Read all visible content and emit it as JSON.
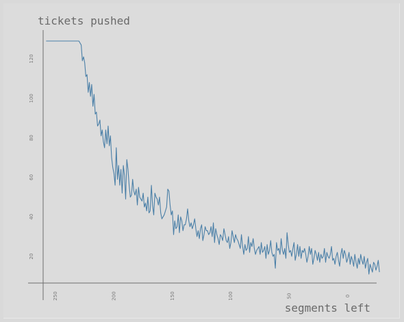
{
  "chart_data": {
    "type": "line",
    "title": "",
    "ylabel": "tickets pushed",
    "xlabel": "segments left",
    "x_reversed": true,
    "xlim": [
      262,
      -10
    ],
    "ylim": [
      5,
      135
    ],
    "x_ticks": [
      250,
      200,
      150,
      100,
      50,
      0
    ],
    "y_ticks": [
      20,
      40,
      60,
      80,
      100,
      120
    ],
    "x_tick_labels": [
      "250",
      "200",
      "150",
      "100",
      "50",
      "0"
    ],
    "y_tick_labels": [
      "20",
      "40",
      "60",
      "80",
      "100",
      "120"
    ],
    "grid": false,
    "line_color": "#4a7fa7",
    "series": [
      {
        "x_start": 258,
        "x_step": -1,
        "values": [
          129,
          129,
          129,
          129,
          129,
          129,
          129,
          129,
          129,
          129,
          129,
          129,
          129,
          129,
          129,
          129,
          129,
          129,
          129,
          129,
          129,
          129,
          129,
          129,
          129,
          129,
          129,
          129,
          129,
          128,
          127,
          119,
          121,
          118,
          111,
          112,
          103,
          108,
          101,
          107,
          96,
          102,
          92,
          93,
          86,
          87,
          89,
          81,
          84,
          78,
          75,
          84,
          77,
          86,
          76,
          81,
          70,
          65,
          62,
          56,
          75,
          59,
          66,
          56,
          64,
          52,
          66,
          61,
          49,
          69,
          64,
          56,
          50,
          51,
          59,
          53,
          51,
          54,
          46,
          55,
          50,
          49,
          48,
          52,
          45,
          47,
          43,
          50,
          42,
          43,
          56,
          46,
          41,
          52,
          50,
          49,
          46,
          50,
          42,
          39,
          40,
          41,
          43,
          45,
          54,
          53,
          46,
          41,
          43,
          31,
          38,
          34,
          35,
          41,
          32,
          40,
          38,
          33,
          36,
          36,
          39,
          44,
          38,
          35,
          37,
          34,
          36,
          39,
          34,
          30,
          33,
          29,
          34,
          36,
          28,
          31,
          35,
          33,
          33,
          31,
          32,
          35,
          30,
          37,
          27,
          34,
          31,
          29,
          26,
          31,
          30,
          28,
          34,
          31,
          28,
          27,
          30,
          24,
          27,
          33,
          30,
          27,
          31,
          29,
          28,
          26,
          24,
          31,
          25,
          21,
          26,
          23,
          24,
          30,
          22,
          27,
          25,
          29,
          24,
          21,
          23,
          24,
          25,
          21,
          27,
          22,
          23,
          25,
          19,
          26,
          21,
          23,
          28,
          22,
          20,
          21,
          14,
          27,
          23,
          24,
          21,
          29,
          23,
          21,
          24,
          19,
          32,
          26,
          22,
          23,
          20,
          24,
          27,
          18,
          21,
          26,
          20,
          25,
          19,
          23,
          22,
          24,
          21,
          17,
          20,
          25,
          21,
          24,
          16,
          19,
          23,
          21,
          18,
          22,
          17,
          21,
          19,
          20,
          24,
          17,
          22,
          20,
          19,
          21,
          25,
          18,
          19,
          16,
          20,
          22,
          18,
          15,
          21,
          24,
          19,
          23,
          21,
          17,
          19,
          22,
          16,
          20,
          18,
          15,
          21,
          17,
          14,
          19,
          16,
          21,
          18,
          16,
          20,
          14,
          17,
          19,
          11,
          16,
          14,
          12,
          17,
          16,
          13,
          15,
          18,
          12
        ]
      }
    ]
  }
}
